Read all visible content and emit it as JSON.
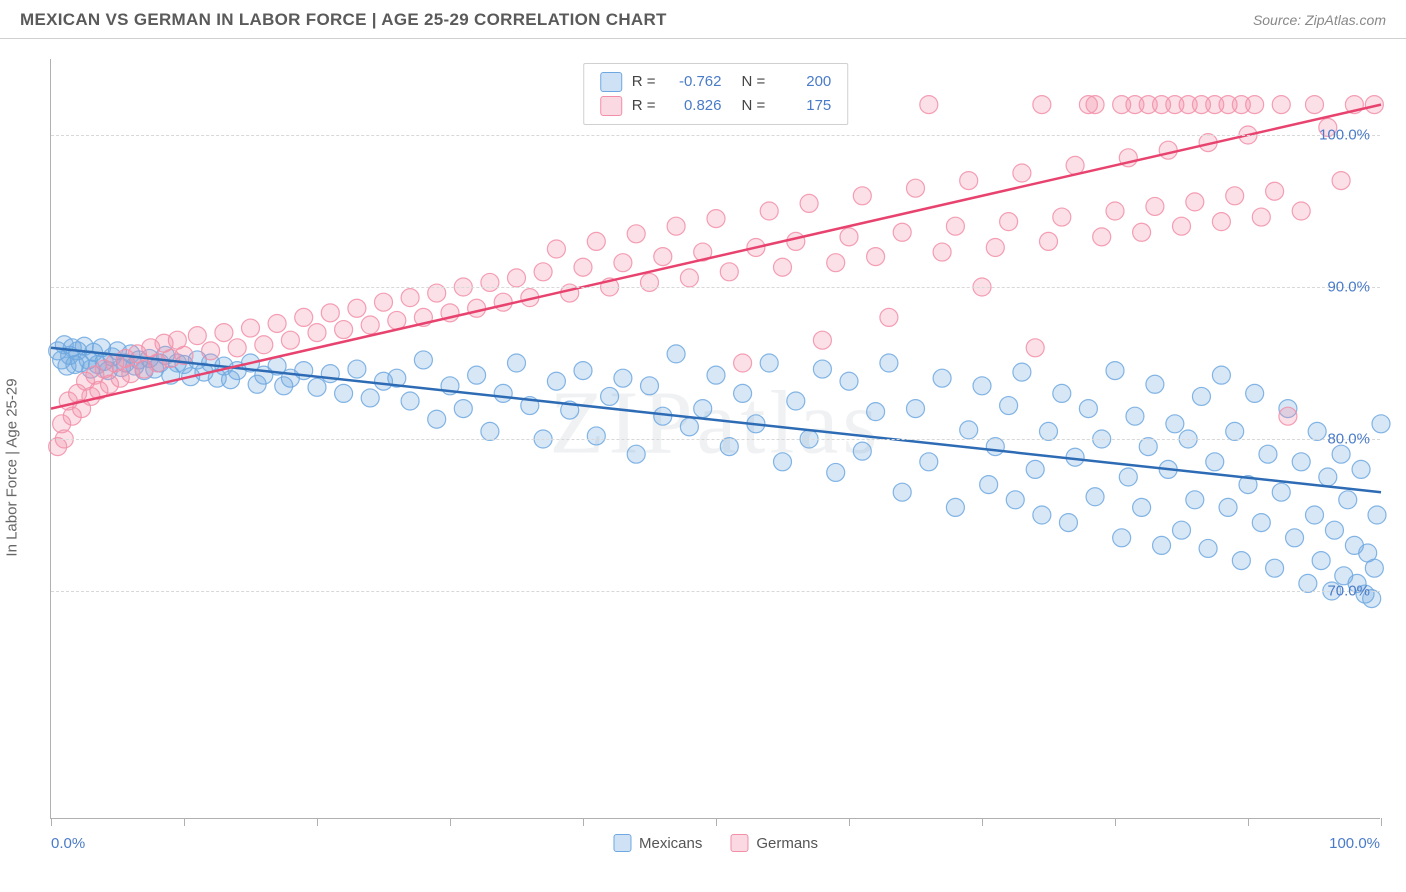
{
  "header": {
    "title": "MEXICAN VS GERMAN IN LABOR FORCE | AGE 25-29 CORRELATION CHART",
    "source": "Source: ZipAtlas.com"
  },
  "chart": {
    "type": "scatter",
    "ylabel": "In Labor Force | Age 25-29",
    "xlim": [
      0,
      100
    ],
    "ylim": [
      55,
      105
    ],
    "xticks": [
      0,
      10,
      20,
      30,
      40,
      50,
      60,
      70,
      80,
      90,
      100
    ],
    "xtick_labels": {
      "left": "0.0%",
      "right": "100.0%"
    },
    "yticks": [
      70,
      80,
      90,
      100
    ],
    "ytick_labels": [
      "70.0%",
      "80.0%",
      "90.0%",
      "100.0%"
    ],
    "grid_color": "#d8d8d8",
    "background_color": "#ffffff",
    "axis_color": "#b0b0b0",
    "label_color": "#4a7bc8",
    "marker_radius": 9,
    "marker_fill_opacity": 0.28,
    "marker_stroke_opacity": 0.85,
    "line_width": 2.5,
    "watermark": "ZIPatlas",
    "series": [
      {
        "name": "Mexicans",
        "color": "#6fa8e0",
        "line_color": "#2d6bb5",
        "trend": {
          "x1": 0,
          "y1": 86.0,
          "x2": 100,
          "y2": 76.5
        },
        "stats": {
          "R": "-0.762",
          "N": "200"
        },
        "points": [
          [
            0.5,
            85.8
          ],
          [
            0.8,
            85.2
          ],
          [
            1.0,
            86.2
          ],
          [
            1.2,
            84.8
          ],
          [
            1.4,
            85.5
          ],
          [
            1.6,
            86.0
          ],
          [
            1.8,
            84.9
          ],
          [
            2.0,
            85.8
          ],
          [
            2.2,
            85.0
          ],
          [
            2.5,
            86.1
          ],
          [
            2.8,
            85.2
          ],
          [
            3.0,
            84.6
          ],
          [
            3.2,
            85.7
          ],
          [
            3.5,
            84.9
          ],
          [
            3.8,
            86.0
          ],
          [
            4.0,
            85.1
          ],
          [
            4.3,
            84.5
          ],
          [
            4.6,
            85.4
          ],
          [
            5.0,
            85.8
          ],
          [
            5.3,
            84.7
          ],
          [
            5.6,
            85.0
          ],
          [
            6.0,
            85.6
          ],
          [
            6.3,
            84.8
          ],
          [
            6.6,
            85.2
          ],
          [
            7.0,
            84.5
          ],
          [
            7.4,
            85.3
          ],
          [
            7.8,
            84.6
          ],
          [
            8.2,
            85.0
          ],
          [
            8.6,
            85.5
          ],
          [
            9.0,
            84.2
          ],
          [
            9.5,
            85.0
          ],
          [
            10,
            84.9
          ],
          [
            10.5,
            84.1
          ],
          [
            11,
            85.2
          ],
          [
            11.5,
            84.4
          ],
          [
            12,
            85.0
          ],
          [
            12.5,
            84.0
          ],
          [
            13,
            84.8
          ],
          [
            13.5,
            83.9
          ],
          [
            14,
            84.5
          ],
          [
            15,
            85.0
          ],
          [
            15.5,
            83.6
          ],
          [
            16,
            84.2
          ],
          [
            17,
            84.8
          ],
          [
            17.5,
            83.5
          ],
          [
            18,
            84.0
          ],
          [
            19,
            84.5
          ],
          [
            20,
            83.4
          ],
          [
            21,
            84.3
          ],
          [
            22,
            83.0
          ],
          [
            23,
            84.6
          ],
          [
            24,
            82.7
          ],
          [
            25,
            83.8
          ],
          [
            26,
            84.0
          ],
          [
            27,
            82.5
          ],
          [
            28,
            85.2
          ],
          [
            29,
            81.3
          ],
          [
            30,
            83.5
          ],
          [
            31,
            82.0
          ],
          [
            32,
            84.2
          ],
          [
            33,
            80.5
          ],
          [
            34,
            83.0
          ],
          [
            35,
            85.0
          ],
          [
            36,
            82.2
          ],
          [
            37,
            80.0
          ],
          [
            38,
            83.8
          ],
          [
            39,
            81.9
          ],
          [
            40,
            84.5
          ],
          [
            41,
            80.2
          ],
          [
            42,
            82.8
          ],
          [
            43,
            84.0
          ],
          [
            44,
            79.0
          ],
          [
            45,
            83.5
          ],
          [
            46,
            81.5
          ],
          [
            47,
            85.6
          ],
          [
            48,
            80.8
          ],
          [
            49,
            82.0
          ],
          [
            50,
            84.2
          ],
          [
            51,
            79.5
          ],
          [
            52,
            83.0
          ],
          [
            53,
            81.0
          ],
          [
            54,
            85.0
          ],
          [
            55,
            78.5
          ],
          [
            56,
            82.5
          ],
          [
            57,
            80.0
          ],
          [
            58,
            84.6
          ],
          [
            59,
            77.8
          ],
          [
            60,
            83.8
          ],
          [
            61,
            79.2
          ],
          [
            62,
            81.8
          ],
          [
            63,
            85.0
          ],
          [
            64,
            76.5
          ],
          [
            65,
            82.0
          ],
          [
            66,
            78.5
          ],
          [
            67,
            84.0
          ],
          [
            68,
            75.5
          ],
          [
            69,
            80.6
          ],
          [
            70,
            83.5
          ],
          [
            70.5,
            77.0
          ],
          [
            71,
            79.5
          ],
          [
            72,
            82.2
          ],
          [
            72.5,
            76.0
          ],
          [
            73,
            84.4
          ],
          [
            74,
            78.0
          ],
          [
            74.5,
            75.0
          ],
          [
            75,
            80.5
          ],
          [
            76,
            83.0
          ],
          [
            76.5,
            74.5
          ],
          [
            77,
            78.8
          ],
          [
            78,
            82.0
          ],
          [
            78.5,
            76.2
          ],
          [
            79,
            80.0
          ],
          [
            80,
            84.5
          ],
          [
            80.5,
            73.5
          ],
          [
            81,
            77.5
          ],
          [
            81.5,
            81.5
          ],
          [
            82,
            75.5
          ],
          [
            82.5,
            79.5
          ],
          [
            83,
            83.6
          ],
          [
            83.5,
            73.0
          ],
          [
            84,
            78.0
          ],
          [
            84.5,
            81.0
          ],
          [
            85,
            74.0
          ],
          [
            85.5,
            80.0
          ],
          [
            86,
            76.0
          ],
          [
            86.5,
            82.8
          ],
          [
            87,
            72.8
          ],
          [
            87.5,
            78.5
          ],
          [
            88,
            84.2
          ],
          [
            88.5,
            75.5
          ],
          [
            89,
            80.5
          ],
          [
            89.5,
            72.0
          ],
          [
            90,
            77.0
          ],
          [
            90.5,
            83.0
          ],
          [
            91,
            74.5
          ],
          [
            91.5,
            79.0
          ],
          [
            92,
            71.5
          ],
          [
            92.5,
            76.5
          ],
          [
            93,
            82.0
          ],
          [
            93.5,
            73.5
          ],
          [
            94,
            78.5
          ],
          [
            94.5,
            70.5
          ],
          [
            95,
            75.0
          ],
          [
            95.2,
            80.5
          ],
          [
            95.5,
            72.0
          ],
          [
            96,
            77.5
          ],
          [
            96.3,
            70.0
          ],
          [
            96.5,
            74.0
          ],
          [
            97,
            79.0
          ],
          [
            97.2,
            71.0
          ],
          [
            97.5,
            76.0
          ],
          [
            98,
            73.0
          ],
          [
            98.2,
            70.5
          ],
          [
            98.5,
            78.0
          ],
          [
            99,
            72.5
          ],
          [
            99.3,
            69.5
          ],
          [
            99.7,
            75.0
          ],
          [
            100,
            81.0
          ],
          [
            98.8,
            69.8
          ],
          [
            99.5,
            71.5
          ]
        ]
      },
      {
        "name": "Germans",
        "color": "#f28ea8",
        "line_color": "#e8436f",
        "trend": {
          "x1": 0,
          "y1": 82.0,
          "x2": 100,
          "y2": 102.0
        },
        "stats": {
          "R": "0.826",
          "N": "175"
        },
        "points": [
          [
            0.5,
            79.5
          ],
          [
            0.8,
            81.0
          ],
          [
            1.0,
            80.0
          ],
          [
            1.3,
            82.5
          ],
          [
            1.6,
            81.5
          ],
          [
            2.0,
            83.0
          ],
          [
            2.3,
            82.0
          ],
          [
            2.6,
            83.8
          ],
          [
            3.0,
            82.8
          ],
          [
            3.3,
            84.2
          ],
          [
            3.6,
            83.2
          ],
          [
            4.0,
            84.6
          ],
          [
            4.4,
            83.6
          ],
          [
            4.8,
            85.0
          ],
          [
            5.2,
            84.0
          ],
          [
            5.6,
            85.3
          ],
          [
            6.0,
            84.3
          ],
          [
            6.5,
            85.6
          ],
          [
            7.0,
            84.6
          ],
          [
            7.5,
            86.0
          ],
          [
            8.0,
            85.0
          ],
          [
            8.5,
            86.3
          ],
          [
            9.0,
            85.3
          ],
          [
            9.5,
            86.5
          ],
          [
            10,
            85.5
          ],
          [
            11,
            86.8
          ],
          [
            12,
            85.8
          ],
          [
            13,
            87.0
          ],
          [
            14,
            86.0
          ],
          [
            15,
            87.3
          ],
          [
            16,
            86.2
          ],
          [
            17,
            87.6
          ],
          [
            18,
            86.5
          ],
          [
            19,
            88.0
          ],
          [
            20,
            87.0
          ],
          [
            21,
            88.3
          ],
          [
            22,
            87.2
          ],
          [
            23,
            88.6
          ],
          [
            24,
            87.5
          ],
          [
            25,
            89.0
          ],
          [
            26,
            87.8
          ],
          [
            27,
            89.3
          ],
          [
            28,
            88.0
          ],
          [
            29,
            89.6
          ],
          [
            30,
            88.3
          ],
          [
            31,
            90.0
          ],
          [
            32,
            88.6
          ],
          [
            33,
            90.3
          ],
          [
            34,
            89.0
          ],
          [
            35,
            90.6
          ],
          [
            36,
            89.3
          ],
          [
            37,
            91.0
          ],
          [
            38,
            92.5
          ],
          [
            39,
            89.6
          ],
          [
            40,
            91.3
          ],
          [
            41,
            93.0
          ],
          [
            42,
            90.0
          ],
          [
            43,
            91.6
          ],
          [
            44,
            93.5
          ],
          [
            45,
            90.3
          ],
          [
            46,
            92.0
          ],
          [
            47,
            94.0
          ],
          [
            48,
            90.6
          ],
          [
            49,
            92.3
          ],
          [
            50,
            94.5
          ],
          [
            51,
            91.0
          ],
          [
            52,
            85.0
          ],
          [
            53,
            92.6
          ],
          [
            54,
            95.0
          ],
          [
            55,
            91.3
          ],
          [
            56,
            93.0
          ],
          [
            57,
            95.5
          ],
          [
            58,
            86.5
          ],
          [
            59,
            91.6
          ],
          [
            60,
            93.3
          ],
          [
            61,
            96.0
          ],
          [
            62,
            92.0
          ],
          [
            63,
            88.0
          ],
          [
            64,
            93.6
          ],
          [
            65,
            96.5
          ],
          [
            66,
            102.0
          ],
          [
            67,
            92.3
          ],
          [
            68,
            94.0
          ],
          [
            69,
            97.0
          ],
          [
            70,
            90.0
          ],
          [
            71,
            92.6
          ],
          [
            72,
            94.3
          ],
          [
            73,
            97.5
          ],
          [
            74,
            86.0
          ],
          [
            74.5,
            102.0
          ],
          [
            75,
            93.0
          ],
          [
            76,
            94.6
          ],
          [
            77,
            98.0
          ],
          [
            78,
            102.0
          ],
          [
            78.5,
            102.0
          ],
          [
            79,
            93.3
          ],
          [
            80,
            95.0
          ],
          [
            80.5,
            102.0
          ],
          [
            81,
            98.5
          ],
          [
            81.5,
            102.0
          ],
          [
            82,
            93.6
          ],
          [
            82.5,
            102.0
          ],
          [
            83,
            95.3
          ],
          [
            83.5,
            102.0
          ],
          [
            84,
            99.0
          ],
          [
            84.5,
            102.0
          ],
          [
            85,
            94.0
          ],
          [
            85.5,
            102.0
          ],
          [
            86,
            95.6
          ],
          [
            86.5,
            102.0
          ],
          [
            87,
            99.5
          ],
          [
            87.5,
            102.0
          ],
          [
            88,
            94.3
          ],
          [
            88.5,
            102.0
          ],
          [
            89,
            96.0
          ],
          [
            89.5,
            102.0
          ],
          [
            90,
            100.0
          ],
          [
            90.5,
            102.0
          ],
          [
            91,
            94.6
          ],
          [
            92,
            96.3
          ],
          [
            92.5,
            102.0
          ],
          [
            93,
            81.5
          ],
          [
            94,
            95.0
          ],
          [
            95,
            102.0
          ],
          [
            96,
            100.5
          ],
          [
            97,
            97.0
          ],
          [
            98,
            102.0
          ],
          [
            99.5,
            102.0
          ]
        ]
      }
    ],
    "legend_labels": [
      "Mexicans",
      "Germans"
    ]
  }
}
